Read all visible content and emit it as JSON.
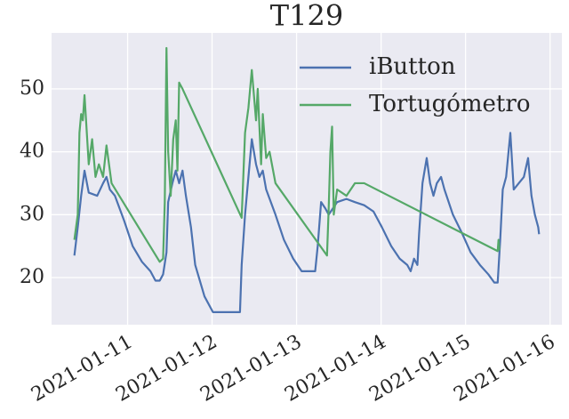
{
  "chart_data": {
    "type": "line",
    "title": "T129",
    "xlim": [
      10.1,
      16.14
    ],
    "ylim": [
      12.5,
      58.9
    ],
    "xticks": [
      {
        "value": 11,
        "label": "2021-01-11"
      },
      {
        "value": 12,
        "label": "2021-01-12"
      },
      {
        "value": 13,
        "label": "2021-01-13"
      },
      {
        "value": 14,
        "label": "2021-01-14"
      },
      {
        "value": 15,
        "label": "2021-01-15"
      },
      {
        "value": 16,
        "label": "2021-01-16"
      }
    ],
    "yticks": [
      20,
      30,
      40,
      50
    ],
    "grid": true,
    "legend": "upper right",
    "series": [
      {
        "name": "iButton",
        "color": "#4c72b0",
        "x": [
          10.37,
          10.41,
          10.45,
          10.49,
          10.54,
          10.64,
          10.71,
          10.75,
          10.79,
          10.85,
          10.96,
          11.06,
          11.17,
          11.27,
          11.33,
          11.38,
          11.42,
          11.46,
          11.48,
          11.53,
          11.57,
          11.61,
          11.65,
          11.69,
          11.75,
          11.8,
          11.91,
          12.01,
          12.33,
          12.35,
          12.39,
          12.43,
          12.47,
          12.52,
          12.56,
          12.6,
          12.64,
          12.75,
          12.85,
          12.96,
          13.06,
          13.17,
          13.22,
          13.25,
          13.29,
          13.34,
          13.38,
          13.43,
          13.48,
          13.59,
          13.69,
          13.8,
          13.91,
          14.01,
          14.12,
          14.22,
          14.31,
          14.35,
          14.39,
          14.43,
          14.45,
          14.49,
          14.54,
          14.58,
          14.62,
          14.66,
          14.71,
          14.75,
          14.85,
          14.96,
          15.06,
          15.17,
          15.27,
          15.34,
          15.38,
          15.41,
          15.44,
          15.48,
          15.53,
          15.57,
          15.63,
          15.69,
          15.74,
          15.78,
          15.82,
          15.86,
          15.87
        ],
        "values": [
          23.5,
          28,
          33,
          37,
          33.5,
          33,
          35,
          36,
          34,
          33,
          29,
          25,
          22.5,
          21,
          19.5,
          19.5,
          20.5,
          24,
          32,
          35,
          37,
          35,
          37,
          33,
          28,
          22,
          17,
          14.5,
          14.5,
          22,
          30,
          36,
          42,
          38,
          36,
          37,
          34,
          30,
          26,
          23,
          21,
          21,
          21,
          25,
          32,
          31,
          30,
          31,
          32,
          32.5,
          32,
          31.5,
          30.5,
          28,
          25,
          23,
          22,
          21,
          23,
          22,
          27,
          35,
          39,
          35,
          33,
          35,
          36,
          34,
          30,
          27,
          24,
          22,
          20.5,
          19.2,
          19.2,
          26,
          34,
          36,
          43,
          34,
          35,
          36,
          39,
          33,
          30,
          28,
          26.9
        ]
      },
      {
        "name": "Tortugómetro",
        "color": "#55a868",
        "x": [
          10.37,
          10.41,
          10.43,
          10.45,
          10.47,
          10.49,
          10.54,
          10.58,
          10.62,
          10.66,
          10.71,
          10.75,
          10.79,
          10.81,
          11.38,
          11.42,
          11.44,
          11.46,
          11.48,
          11.51,
          11.54,
          11.57,
          11.59,
          11.61,
          11.65,
          12.35,
          12.39,
          12.43,
          12.47,
          12.52,
          12.54,
          12.58,
          12.6,
          12.64,
          12.68,
          12.75,
          13.36,
          13.38,
          13.4,
          13.42,
          13.44,
          13.48,
          13.59,
          13.69,
          13.8,
          15.38,
          15.39,
          15.4
        ],
        "values": [
          26,
          30,
          43,
          46,
          45,
          49,
          38,
          42,
          36,
          38,
          36,
          41,
          37,
          35,
          22.5,
          23,
          32,
          56.5,
          40,
          33,
          42,
          45,
          37,
          51,
          50,
          29.5,
          43,
          47,
          53,
          45,
          50,
          38,
          46,
          39,
          40,
          35,
          23.5,
          31,
          40,
          44,
          30,
          34,
          33,
          35,
          35,
          24.2,
          26,
          24.3
        ]
      }
    ]
  }
}
